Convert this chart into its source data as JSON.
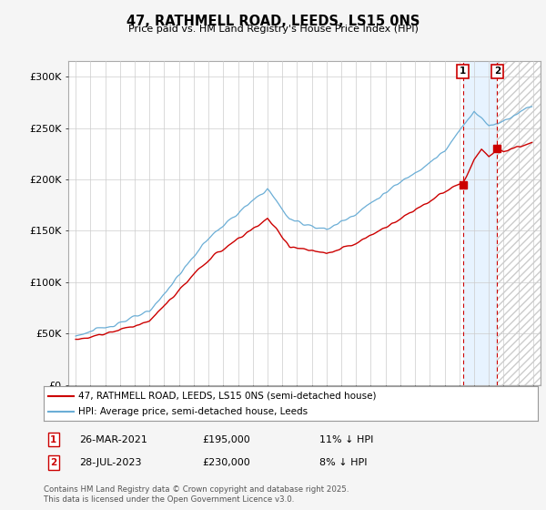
{
  "title": "47, RATHMELL ROAD, LEEDS, LS15 0NS",
  "subtitle": "Price paid vs. HM Land Registry's House Price Index (HPI)",
  "ylabel_ticks": [
    "£0",
    "£50K",
    "£100K",
    "£150K",
    "£200K",
    "£250K",
    "£300K"
  ],
  "ytick_values": [
    0,
    50000,
    100000,
    150000,
    200000,
    250000,
    300000
  ],
  "ylim": [
    0,
    315000
  ],
  "xlim_start": 1994.5,
  "xlim_end": 2026.5,
  "hpi_color": "#6baed6",
  "price_color": "#cc0000",
  "marker1_x": 2021.23,
  "marker1_price": 195000,
  "marker2_x": 2023.57,
  "marker2_price": 230000,
  "marker1_date": "26-MAR-2021",
  "marker1_hpi_pct": "11% ↓ HPI",
  "marker2_date": "28-JUL-2023",
  "marker2_hpi_pct": "8% ↓ HPI",
  "legend_line1": "47, RATHMELL ROAD, LEEDS, LS15 0NS (semi-detached house)",
  "legend_line2": "HPI: Average price, semi-detached house, Leeds",
  "footnote": "Contains HM Land Registry data © Crown copyright and database right 2025.\nThis data is licensed under the Open Government Licence v3.0.",
  "background_color": "#f5f5f5",
  "plot_bg_color": "#ffffff",
  "shade_color": "#ddeeff"
}
